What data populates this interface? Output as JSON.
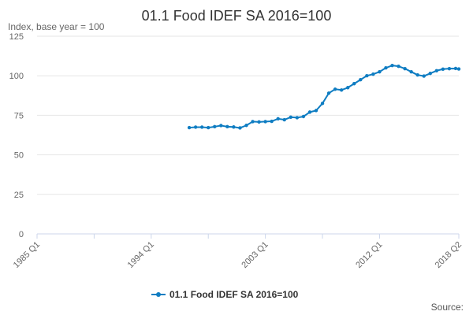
{
  "chart_data": {
    "type": "line",
    "title": "01.1 Food IDEF SA 2016=100",
    "ylabel": "Index, base year = 100",
    "xlabel": "",
    "ylim": [
      0,
      125
    ],
    "yticks": [
      0,
      25,
      50,
      75,
      100,
      125
    ],
    "xticks": [
      "1985 Q1",
      "1994 Q1",
      "2003 Q1",
      "2012 Q1",
      "2018 Q2"
    ],
    "x_start": "1985 Q1",
    "x_end": "2018 Q2",
    "grid": true,
    "legend_position": "bottom",
    "source_label": "Source:",
    "series": [
      {
        "name": "01.1 Food IDEF SA 2016=100",
        "color": "#0f7dc2",
        "points": [
          [
            "1997 Q1",
            67.2
          ],
          [
            "1997 Q3",
            67.5
          ],
          [
            "1998 Q1",
            67.5
          ],
          [
            "1998 Q3",
            67.2
          ],
          [
            "1999 Q1",
            67.8
          ],
          [
            "1999 Q3",
            68.5
          ],
          [
            "2000 Q1",
            67.8
          ],
          [
            "2000 Q3",
            67.6
          ],
          [
            "2001 Q1",
            67.0
          ],
          [
            "2001 Q3",
            68.6
          ],
          [
            "2002 Q1",
            71.0
          ],
          [
            "2002 Q3",
            70.8
          ],
          [
            "2003 Q1",
            71.0
          ],
          [
            "2003 Q3",
            71.2
          ],
          [
            "2004 Q1",
            72.8
          ],
          [
            "2004 Q3",
            72.2
          ],
          [
            "2005 Q1",
            73.8
          ],
          [
            "2005 Q3",
            73.5
          ],
          [
            "2006 Q1",
            74.2
          ],
          [
            "2006 Q3",
            77.0
          ],
          [
            "2007 Q1",
            78.0
          ],
          [
            "2007 Q3",
            82.5
          ],
          [
            "2008 Q1",
            89.0
          ],
          [
            "2008 Q3",
            91.5
          ],
          [
            "2009 Q1",
            91.0
          ],
          [
            "2009 Q3",
            92.5
          ],
          [
            "2010 Q1",
            95.0
          ],
          [
            "2010 Q3",
            97.5
          ],
          [
            "2011 Q1",
            100.0
          ],
          [
            "2011 Q3",
            101.0
          ],
          [
            "2012 Q1",
            102.5
          ],
          [
            "2012 Q3",
            105.0
          ],
          [
            "2013 Q1",
            106.5
          ],
          [
            "2013 Q3",
            106.0
          ],
          [
            "2014 Q1",
            104.5
          ],
          [
            "2014 Q3",
            102.5
          ],
          [
            "2015 Q1",
            100.5
          ],
          [
            "2015 Q3",
            99.8
          ],
          [
            "2016 Q1",
            101.5
          ],
          [
            "2016 Q3",
            103.2
          ],
          [
            "2017 Q1",
            104.2
          ],
          [
            "2017 Q3",
            104.5
          ],
          [
            "2018 Q1",
            104.6
          ],
          [
            "2018 Q2",
            104.3
          ]
        ]
      }
    ]
  }
}
